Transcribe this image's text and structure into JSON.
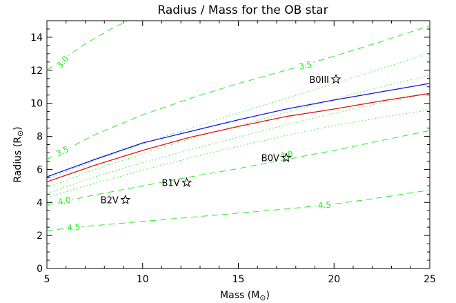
{
  "chart_data": {
    "type": "line",
    "title": "Radius / Mass for the OB star",
    "xlabel": "Mass (M",
    "ylabel": "Radius (R",
    "sun_symbol": "⊙",
    "xlim": [
      5,
      25
    ],
    "ylim": [
      0,
      15
    ],
    "xticks": [
      5,
      10,
      15,
      20,
      25
    ],
    "yticks": [
      0,
      2,
      4,
      6,
      8,
      10,
      12,
      14
    ],
    "colors": {
      "blue": "#1010e0",
      "red": "#e01010",
      "green": "#22ee22",
      "axis": "#000000"
    },
    "series": [
      {
        "color": "blue",
        "style": "solid",
        "x": [
          5,
          7.5,
          10,
          12.5,
          15,
          17.5,
          20,
          22.5,
          25
        ],
        "y": [
          5.55,
          6.6,
          7.6,
          8.3,
          9.0,
          9.65,
          10.2,
          10.7,
          11.2
        ]
      },
      {
        "color": "red",
        "style": "solid",
        "x": [
          5,
          7.5,
          10,
          12.5,
          15,
          17.5,
          20,
          22.5,
          25
        ],
        "y": [
          5.25,
          6.25,
          7.15,
          7.95,
          8.6,
          9.2,
          9.65,
          10.15,
          10.6
        ]
      }
    ],
    "contours": [
      {
        "style": "dashed",
        "label": "3.0",
        "x": [
          5,
          7,
          8.5,
          10
        ],
        "y": [
          12.0,
          13.6,
          14.6,
          15.4
        ]
      },
      {
        "style": "dashed",
        "label": "3.5",
        "x": [
          5,
          7.5,
          10,
          12.5,
          15,
          17.5,
          20,
          22.5,
          25
        ],
        "y": [
          6.6,
          8.1,
          9.3,
          10.3,
          11.2,
          12.0,
          12.85,
          13.75,
          14.7
        ]
      },
      {
        "style": "dotted",
        "x": [
          5,
          7.5,
          10,
          12.5,
          15,
          17.5,
          20,
          22.5,
          25
        ],
        "y": [
          5.4,
          6.55,
          7.55,
          8.5,
          9.4,
          10.3,
          11.2,
          12.1,
          13.05
        ]
      },
      {
        "style": "dotted",
        "x": [
          5,
          7.5,
          10,
          12.5,
          15,
          17.5,
          20,
          22.5,
          25
        ],
        "y": [
          4.9,
          6.0,
          6.95,
          7.85,
          8.65,
          9.45,
          10.25,
          11.0,
          11.7
        ]
      },
      {
        "style": "dotted",
        "x": [
          5,
          7.5,
          10,
          12.5,
          15,
          17.5,
          20,
          22.5,
          25
        ],
        "y": [
          4.55,
          5.55,
          6.4,
          7.2,
          7.95,
          8.7,
          9.4,
          10.05,
          10.6
        ]
      },
      {
        "style": "dotted",
        "x": [
          5,
          7.5,
          10,
          12.5,
          15,
          17.5,
          20,
          22.5,
          25
        ],
        "y": [
          4.3,
          5.15,
          5.95,
          6.7,
          7.4,
          8.05,
          8.65,
          9.15,
          9.6
        ]
      },
      {
        "style": "dashed",
        "label": "4.0",
        "x": [
          5,
          7.5,
          10,
          12.5,
          15,
          17.5,
          20,
          22.5,
          25
        ],
        "y": [
          3.85,
          4.45,
          5.0,
          5.55,
          6.05,
          6.6,
          7.15,
          7.75,
          8.35
        ]
      },
      {
        "style": "dashed",
        "label": "4.5",
        "x": [
          5,
          7.5,
          10,
          12.5,
          15,
          17.5,
          20,
          22.5,
          25
        ],
        "y": [
          2.3,
          2.6,
          2.85,
          3.1,
          3.35,
          3.6,
          3.9,
          4.3,
          4.75
        ]
      }
    ],
    "contour_labels": [
      {
        "text": "3.0",
        "x": 5.8,
        "y": 12.4,
        "angle": -50
      },
      {
        "text": "3.5",
        "x": 18.5,
        "y": 12.2,
        "angle": -12
      },
      {
        "text": "3.5",
        "x": 5.8,
        "y": 7.0,
        "angle": -27
      },
      {
        "text": "4.0",
        "x": 17.5,
        "y": 6.8,
        "angle": -10
      },
      {
        "text": "4.0",
        "x": 5.9,
        "y": 4.0,
        "angle": -12
      },
      {
        "text": "4.5",
        "x": 19.5,
        "y": 3.75,
        "angle": -5
      },
      {
        "text": "4.5",
        "x": 6.4,
        "y": 2.4,
        "angle": -5
      }
    ],
    "stars": [
      {
        "label": "B0III",
        "x": 20.1,
        "y": 11.45
      },
      {
        "label": "B0V",
        "x": 17.5,
        "y": 6.7
      },
      {
        "label": "B1V",
        "x": 12.3,
        "y": 5.2
      },
      {
        "label": "B2V",
        "x": 9.1,
        "y": 4.15
      }
    ]
  }
}
